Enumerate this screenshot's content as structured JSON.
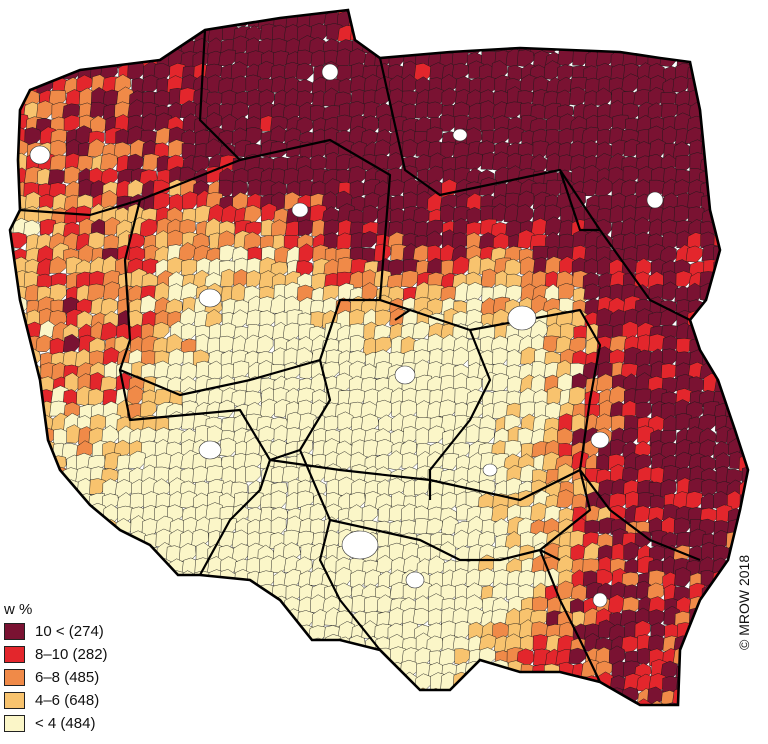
{
  "map": {
    "country": "Poland",
    "unit_level": "gminy",
    "palette_order_note": "highest to lowest",
    "colors": {
      "class_5": "#7a1232",
      "class_4": "#e3262c",
      "class_3": "#f08a48",
      "class_2": "#f8c36e",
      "class_1": "#fbf6c8",
      "no_data": "#ffffff",
      "border": "#1a1a1a",
      "region_border": "#000000"
    }
  },
  "legend": {
    "title": "w %",
    "items": [
      {
        "label": "10 < (274)",
        "color": "#7a1232",
        "count": 274
      },
      {
        "label": "8–10 (282)",
        "color": "#e3262c",
        "count": 282
      },
      {
        "label": "6–8 (485)",
        "color": "#f08a48",
        "count": 485
      },
      {
        "label": "4–6 (648)",
        "color": "#f8c36e",
        "count": 648
      },
      {
        "label": "< 4 (484)",
        "color": "#fbf6c8",
        "count": 484
      }
    ]
  },
  "copyright": "© MROW 2018"
}
